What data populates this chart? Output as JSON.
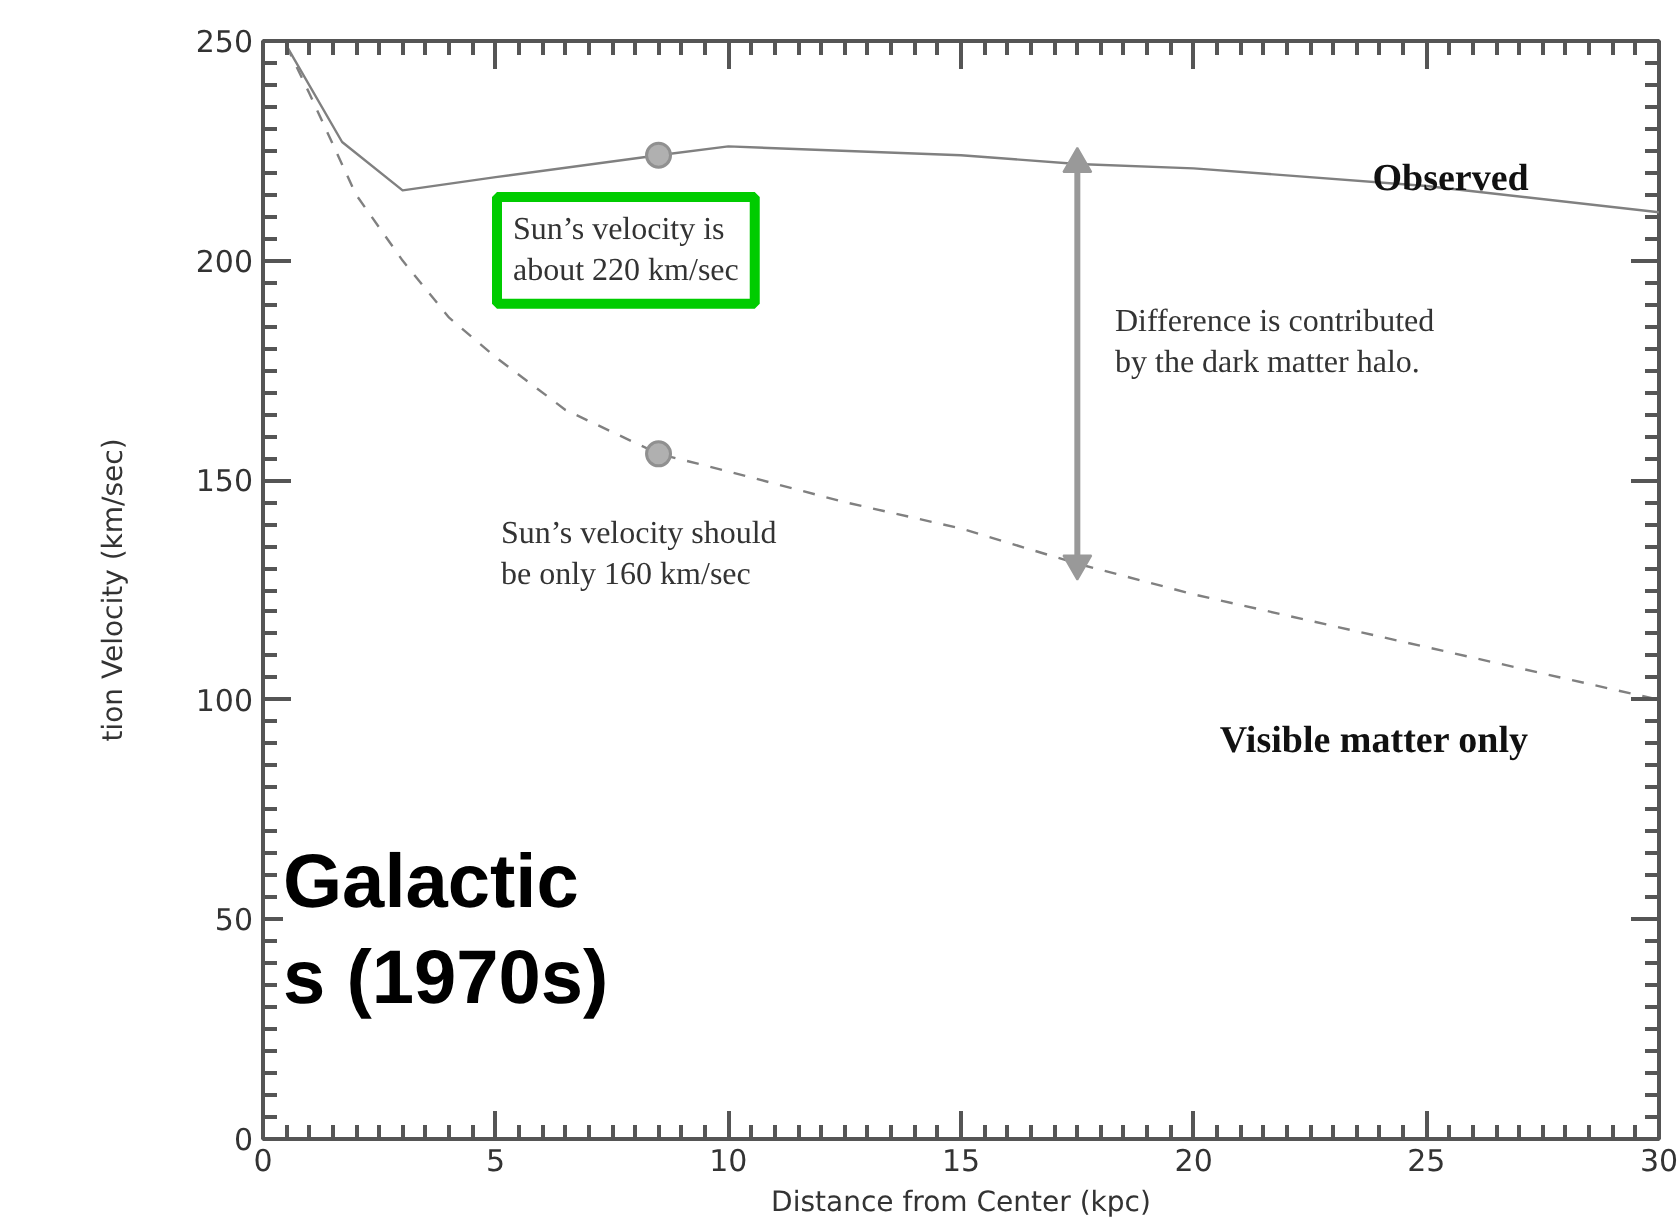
{
  "chart_data": {
    "type": "line",
    "xlabel": "Distance from Center (kpc)",
    "ylabel": "tion Velocity (km/sec)",
    "xlim": [
      0,
      30
    ],
    "ylim": [
      0,
      250
    ],
    "xticks": [
      0,
      5,
      10,
      15,
      20,
      25,
      30
    ],
    "yticks": [
      0,
      50,
      100,
      150,
      200,
      250
    ],
    "grid": false,
    "series": [
      {
        "name": "Observed",
        "color": "#808080",
        "line_style": "solid",
        "x": [
          0.5,
          1.7,
          3,
          5,
          8.5,
          10,
          15,
          17.5,
          20,
          25,
          30
        ],
        "values": [
          249,
          227,
          216,
          219,
          224,
          226,
          224,
          222,
          221,
          217,
          211
        ]
      },
      {
        "name": "Visible matter only",
        "color": "#808080",
        "line_style": "dashed",
        "x": [
          0.5,
          1,
          2,
          3,
          4,
          5,
          6.5,
          8.5,
          10,
          12.5,
          15,
          17.5,
          20,
          25,
          30
        ],
        "values": [
          249,
          238,
          215,
          200,
          187,
          178,
          166,
          156,
          152,
          145,
          139,
          131,
          124,
          112,
          100
        ]
      },
      {
        "type": "scatter",
        "color": "#b0b0b0",
        "marker": "circle",
        "x": [
          8.5,
          8.5
        ],
        "values": [
          224,
          156
        ]
      },
      {
        "type": "line",
        "color": "#999999",
        "marker": "triangle",
        "x": [
          17.5,
          17.5
        ],
        "values": [
          131,
          222
        ]
      }
    ],
    "annotations": [
      "Sun’s velocity is\nabout 220 km/sec",
      "Sun’s velocity should\nbe only 160 km/sec",
      "Difference is contributed\nby the dark matter halo.",
      "Galactic",
      "s (1970s)"
    ]
  }
}
